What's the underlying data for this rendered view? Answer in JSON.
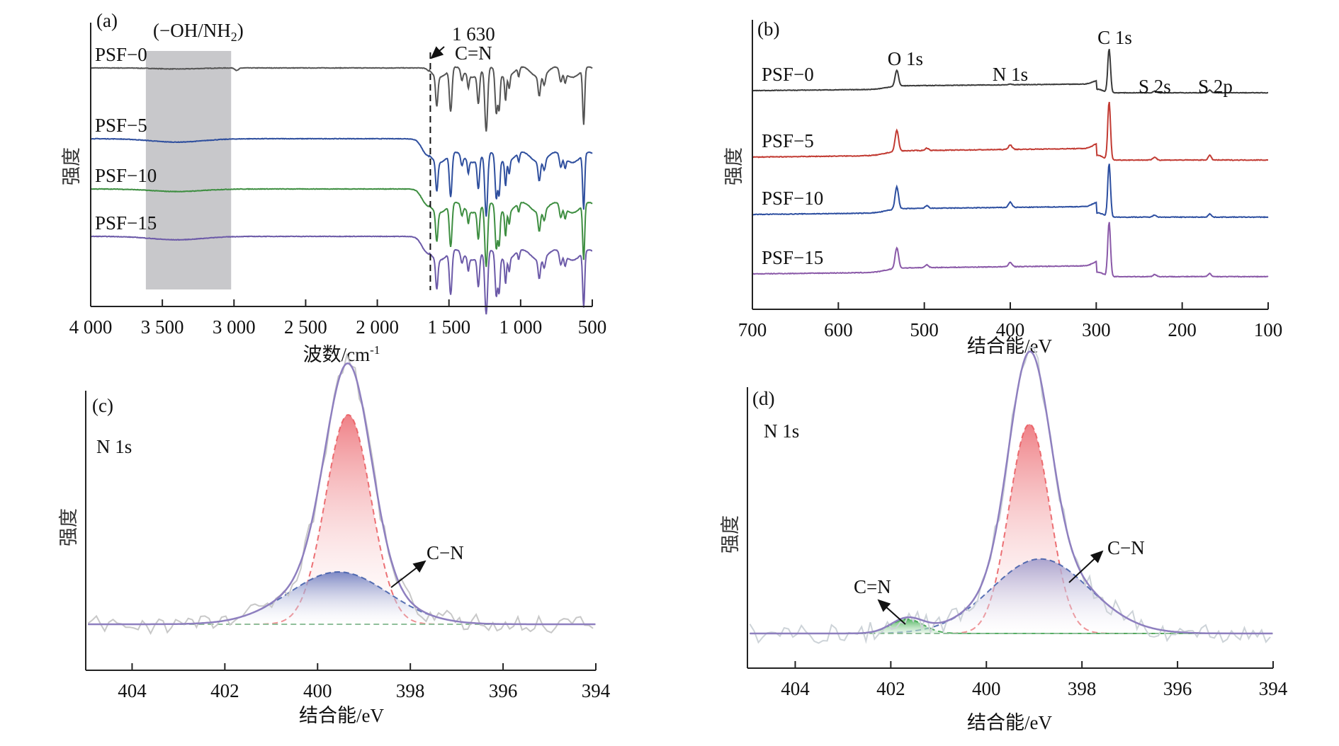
{
  "chart_data": [
    {
      "id": "a",
      "type": "line",
      "panel_label": "(a)",
      "title": "",
      "xlabel": "波数/cm",
      "xlabel_sup": "-1",
      "ylabel": "强度",
      "xlim": [
        4000,
        500
      ],
      "x_ticks": [
        4000,
        3500,
        3000,
        2500,
        2000,
        1500,
        1000,
        500
      ],
      "x_tick_labels": [
        "4 000",
        "3 500",
        "3 000",
        "2 500",
        "2 000",
        "1 500",
        "1 000",
        "500"
      ],
      "y_ticks": [],
      "grid": false,
      "shaded_region": {
        "x_from": 3615,
        "x_to": 3020,
        "label": "(−OH/NH",
        "label_sub": "2",
        "label_end": ")",
        "color": "#c8c8cb"
      },
      "reference_line": {
        "x": 1630,
        "style": "dashed",
        "label_line1": "1 630",
        "label_line2": "C=N"
      },
      "series": [
        {
          "name": "PSF−0",
          "color": "#555555",
          "offset": 0.0,
          "plateau_drop": 0.0,
          "features": [
            [
              3400,
              -0.012,
              150
            ],
            [
              2980,
              -0.03,
              12
            ]
          ]
        },
        {
          "name": "PSF−5",
          "color": "#2f4f9e",
          "offset": 1.0,
          "plateau_drop": 0.22,
          "features": [
            [
              3400,
              -0.04,
              180
            ]
          ]
        },
        {
          "name": "PSF−10",
          "color": "#3e8e41",
          "offset": 1.72,
          "plateau_drop": 0.22,
          "features": [
            [
              3400,
              -0.03,
              180
            ]
          ]
        },
        {
          "name": "PSF−15",
          "color": "#6c5aa8",
          "offset": 2.32,
          "plateau_drop": 0.22,
          "features": [
            [
              3400,
              -0.04,
              180
            ]
          ]
        }
      ],
      "fingerprint_bands_cm": [
        [
          1585,
          -0.35,
          8
        ],
        [
          1488,
          -0.5,
          9
        ],
        [
          1410,
          -0.12,
          8
        ],
        [
          1365,
          -0.15,
          6
        ],
        [
          1295,
          -0.35,
          8
        ],
        [
          1240,
          -0.75,
          10
        ],
        [
          1170,
          -0.5,
          8
        ],
        [
          1150,
          -0.42,
          7
        ],
        [
          1105,
          -0.28,
          6
        ],
        [
          1080,
          -0.15,
          6
        ],
        [
          1013,
          -0.1,
          6
        ],
        [
          870,
          -0.22,
          8
        ],
        [
          835,
          -0.12,
          8
        ],
        [
          720,
          -0.15,
          9
        ],
        [
          690,
          -0.12,
          7
        ],
        [
          560,
          -0.65,
          7
        ]
      ]
    },
    {
      "id": "b",
      "type": "line",
      "panel_label": "(b)",
      "title": "",
      "xlabel": "结合能/eV",
      "ylabel": "强度",
      "xlim": [
        700,
        100
      ],
      "x_ticks": [
        700,
        600,
        500,
        400,
        300,
        200,
        100
      ],
      "x_tick_labels": [
        "700",
        "600",
        "500",
        "400",
        "300",
        "200",
        "100"
      ],
      "grid": false,
      "peak_annotations": [
        {
          "label": "O 1s",
          "x": 532
        },
        {
          "label": "N 1s",
          "x": 400
        },
        {
          "label": "C 1s",
          "x": 285
        },
        {
          "label": "S 2s",
          "x": 232
        },
        {
          "label": "S 2p",
          "x": 168
        }
      ],
      "series": [
        {
          "name": "PSF−0",
          "color": "#3a3a3a",
          "offset": 0,
          "peaks": [
            [
              532,
              0.36,
              2.0
            ],
            [
              400,
              0.02,
              2.0
            ],
            [
              285,
              1.0,
              1.6
            ],
            [
              232,
              0.04,
              2.0
            ],
            [
              168,
              0.06,
              1.8
            ]
          ]
        },
        {
          "name": "PSF−5",
          "color": "#c23b33",
          "offset": 1,
          "peaks": [
            [
              532,
              0.36,
              2.0
            ],
            [
              497,
              0.04,
              2.0
            ],
            [
              400,
              0.08,
              2.0
            ],
            [
              285,
              1.0,
              1.6
            ],
            [
              232,
              0.05,
              2.0
            ],
            [
              168,
              0.08,
              1.8
            ]
          ]
        },
        {
          "name": "PSF−10",
          "color": "#2c4ea0",
          "offset": 2,
          "peaks": [
            [
              532,
              0.42,
              2.0
            ],
            [
              497,
              0.05,
              2.0
            ],
            [
              400,
              0.1,
              2.0
            ],
            [
              285,
              1.0,
              1.6
            ],
            [
              232,
              0.04,
              2.0
            ],
            [
              168,
              0.06,
              1.8
            ]
          ]
        },
        {
          "name": "PSF−15",
          "color": "#8a59a8",
          "offset": 3,
          "peaks": [
            [
              532,
              0.38,
              2.0
            ],
            [
              497,
              0.05,
              2.0
            ],
            [
              400,
              0.08,
              2.0
            ],
            [
              285,
              1.0,
              1.6
            ],
            [
              232,
              0.04,
              2.0
            ],
            [
              168,
              0.06,
              1.8
            ]
          ]
        }
      ]
    },
    {
      "id": "c",
      "type": "area",
      "panel_label": "(c)",
      "subtitle": "N 1s",
      "xlabel": "结合能/eV",
      "ylabel": "强度",
      "xlim": [
        405,
        394
      ],
      "x_ticks": [
        404,
        402,
        400,
        398,
        396,
        394
      ],
      "x_tick_labels": [
        "404",
        "402",
        "400",
        "398",
        "396",
        "394"
      ],
      "grid": false,
      "components": [
        {
          "name": "main",
          "center": 399.34,
          "height": 0.8,
          "fwhm": 1.15,
          "color": "#e9595e",
          "fill": "red"
        },
        {
          "name": "C−N",
          "center": 399.55,
          "height": 0.2,
          "fwhm": 2.5,
          "color": "#3d5aa8",
          "fill": "blue"
        }
      ],
      "envelope_color": "#8e7fbf",
      "raw_color": "#c8c8c8",
      "annotations": [
        {
          "label": "C−N",
          "target": "C−N"
        }
      ]
    },
    {
      "id": "d",
      "type": "area",
      "panel_label": "(d)",
      "subtitle": "N 1s",
      "xlabel": "结合能/eV",
      "ylabel": "强度",
      "xlim": [
        405,
        394
      ],
      "x_ticks": [
        404,
        402,
        400,
        398,
        396,
        394
      ],
      "x_tick_labels": [
        "404",
        "402",
        "400",
        "398",
        "396",
        "394"
      ],
      "grid": false,
      "components": [
        {
          "name": "main",
          "center": 399.1,
          "height": 0.73,
          "fwhm": 1.0,
          "color": "#e9595e",
          "fill": "red"
        },
        {
          "name": "C−N",
          "center": 398.87,
          "height": 0.26,
          "fwhm": 2.4,
          "color": "#3d5aa8",
          "fill": "purple"
        },
        {
          "name": "C=N",
          "center": 401.66,
          "height": 0.05,
          "fwhm": 0.8,
          "color": "#3aa14a",
          "fill": "green"
        }
      ],
      "envelope_color": "#8e7fbf",
      "raw_color": "#cdd3d8",
      "annotations": [
        {
          "label": "C−N",
          "target": "C−N"
        },
        {
          "label": "C=N",
          "target": "C=N"
        }
      ]
    }
  ]
}
